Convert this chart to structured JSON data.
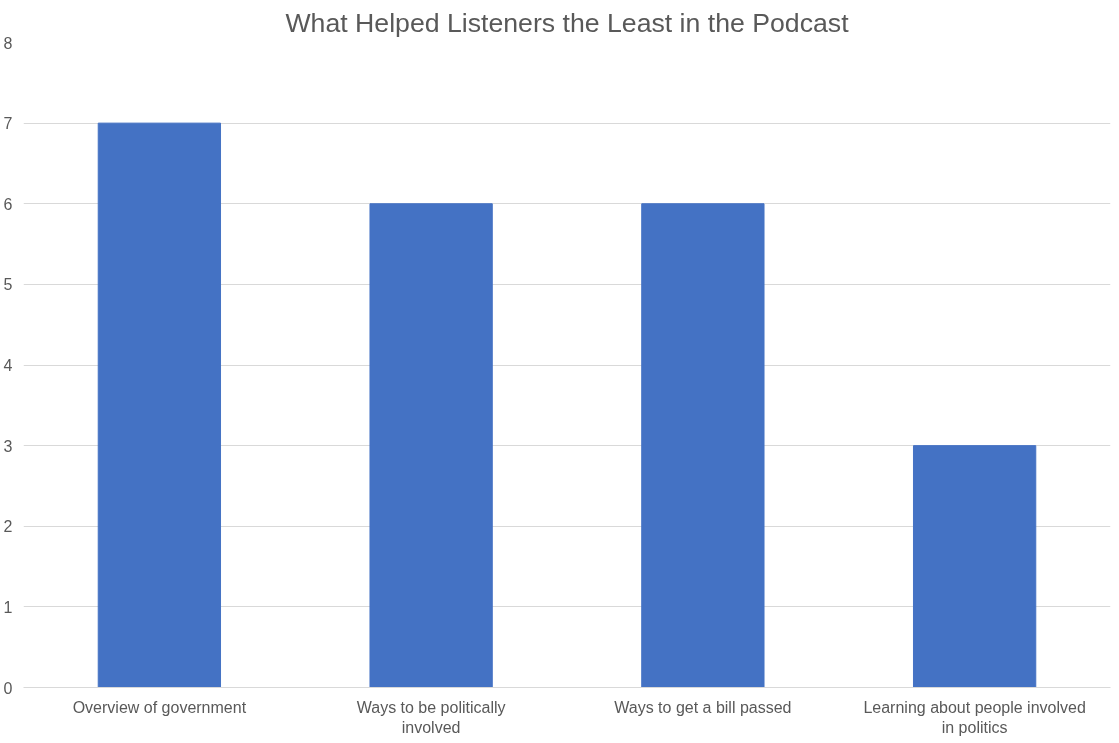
{
  "chart_data": {
    "type": "bar",
    "title": "What Helped Listeners the Least in the Podcast",
    "categories": [
      "Overview of government",
      "Ways to be politically involved",
      "Ways to get a bill passed",
      "Learning about people involved in politics"
    ],
    "values": [
      7,
      6,
      6,
      3
    ],
    "color": "#4472c4",
    "ylim": [
      0,
      8
    ],
    "yticks": [
      0,
      1,
      2,
      3,
      4,
      5,
      6,
      7,
      8
    ],
    "grid": "y"
  }
}
